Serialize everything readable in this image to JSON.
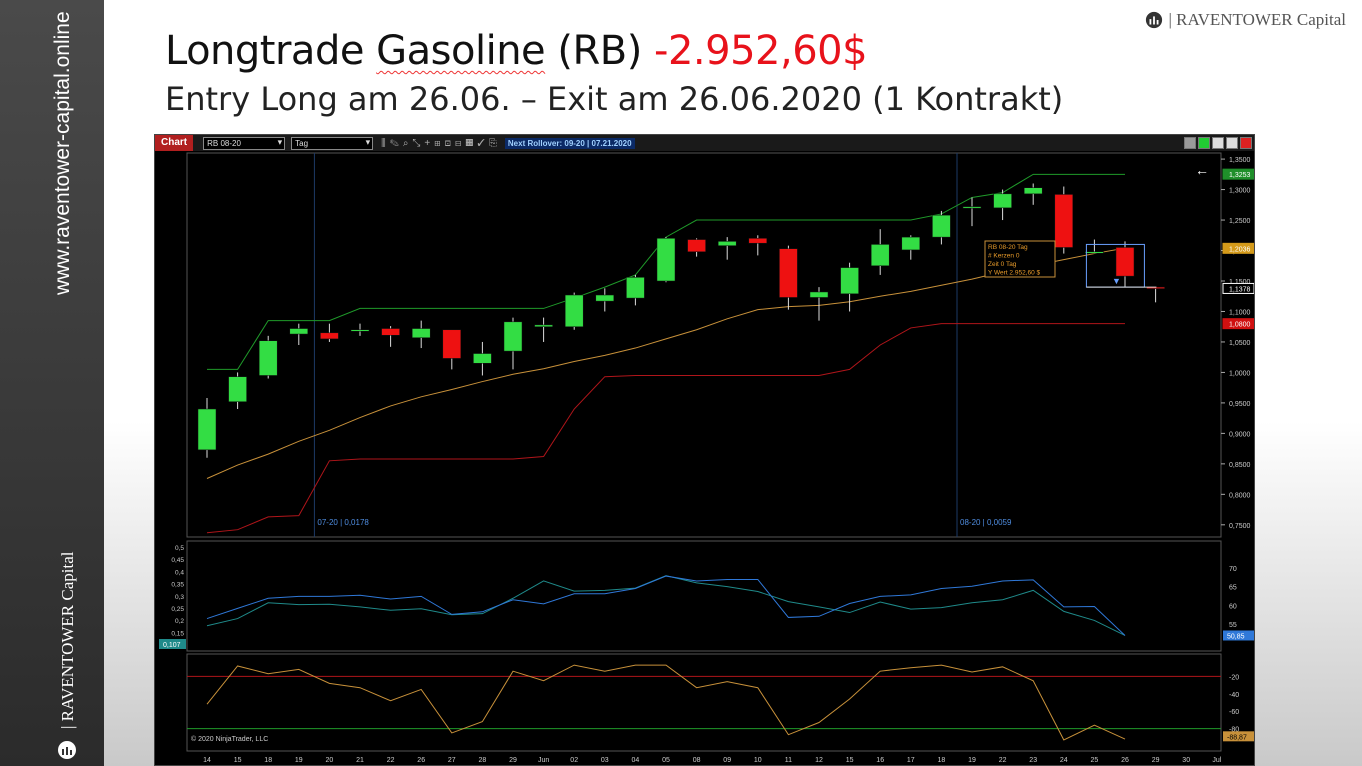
{
  "sidebar": {
    "url": "www.raventower-capital.online",
    "brand": "| RAVENTOWER Capital"
  },
  "header": {
    "brand": "| RAVENTOWER Capital",
    "title_main": "Longtrade ",
    "title_underlined": "Gasoline",
    "title_symbol": " (RB) ",
    "title_pnl": "-2.952,60$",
    "subtitle": "Entry Long am 26.06. – Exit am 26.06.2020 (1 Kontrakt)",
    "pnl_color": "#e8121b"
  },
  "toolbar": {
    "chart_label": "Chart",
    "instrument": "RB 08-20",
    "timeframe": "Tag",
    "rollover": "Next Rollover: 09-20 | 07.21.2020"
  },
  "chart_data": {
    "type": "candlestick",
    "instrument": "RB 08-20",
    "timeframe": "Tag",
    "x_labels": [
      "14",
      "15",
      "18",
      "19",
      "20",
      "21",
      "22",
      "26",
      "27",
      "28",
      "29",
      "Jun",
      "02",
      "03",
      "04",
      "05",
      "08",
      "09",
      "10",
      "11",
      "12",
      "15",
      "16",
      "17",
      "18",
      "19",
      "22",
      "23",
      "24",
      "25",
      "26",
      "29",
      "30",
      "Jul"
    ],
    "candles": [
      {
        "o": 0.873,
        "h": 0.958,
        "l": 0.86,
        "c": 0.94
      },
      {
        "o": 0.952,
        "h": 1.0,
        "l": 0.94,
        "c": 0.993
      },
      {
        "o": 0.995,
        "h": 1.06,
        "l": 0.99,
        "c": 1.052
      },
      {
        "o": 1.063,
        "h": 1.08,
        "l": 1.045,
        "c": 1.072
      },
      {
        "o": 1.065,
        "h": 1.08,
        "l": 1.05,
        "c": 1.055
      },
      {
        "o": 1.069,
        "h": 1.08,
        "l": 1.06,
        "c": 1.07
      },
      {
        "o": 1.072,
        "h": 1.076,
        "l": 1.042,
        "c": 1.061
      },
      {
        "o": 1.057,
        "h": 1.085,
        "l": 1.04,
        "c": 1.072
      },
      {
        "o": 1.07,
        "h": 1.07,
        "l": 1.005,
        "c": 1.023
      },
      {
        "o": 1.015,
        "h": 1.05,
        "l": 0.995,
        "c": 1.031
      },
      {
        "o": 1.035,
        "h": 1.09,
        "l": 1.005,
        "c": 1.083
      },
      {
        "o": 1.075,
        "h": 1.09,
        "l": 1.05,
        "c": 1.078
      },
      {
        "o": 1.075,
        "h": 1.131,
        "l": 1.07,
        "c": 1.127
      },
      {
        "o": 1.117,
        "h": 1.138,
        "l": 1.1,
        "c": 1.127
      },
      {
        "o": 1.122,
        "h": 1.16,
        "l": 1.11,
        "c": 1.156
      },
      {
        "o": 1.15,
        "h": 1.222,
        "l": 1.148,
        "c": 1.22
      },
      {
        "o": 1.218,
        "h": 1.22,
        "l": 1.19,
        "c": 1.198
      },
      {
        "o": 1.208,
        "h": 1.222,
        "l": 1.185,
        "c": 1.215
      },
      {
        "o": 1.22,
        "h": 1.225,
        "l": 1.192,
        "c": 1.212
      },
      {
        "o": 1.203,
        "h": 1.208,
        "l": 1.103,
        "c": 1.123
      },
      {
        "o": 1.123,
        "h": 1.14,
        "l": 1.085,
        "c": 1.132
      },
      {
        "o": 1.129,
        "h": 1.18,
        "l": 1.1,
        "c": 1.172
      },
      {
        "o": 1.175,
        "h": 1.235,
        "l": 1.16,
        "c": 1.21
      },
      {
        "o": 1.201,
        "h": 1.225,
        "l": 1.185,
        "c": 1.222
      },
      {
        "o": 1.222,
        "h": 1.265,
        "l": 1.21,
        "c": 1.258
      },
      {
        "o": 1.27,
        "h": 1.287,
        "l": 1.24,
        "c": 1.272
      },
      {
        "o": 1.27,
        "h": 1.3,
        "l": 1.25,
        "c": 1.293
      },
      {
        "o": 1.293,
        "h": 1.31,
        "l": 1.275,
        "c": 1.303
      },
      {
        "o": 1.292,
        "h": 1.305,
        "l": 1.195,
        "c": 1.205
      },
      {
        "o": 1.198,
        "h": 1.218,
        "l": 1.195,
        "c": 1.198
      },
      {
        "o": 1.205,
        "h": 1.215,
        "l": 1.14,
        "c": 1.158
      },
      {
        "o": 1.14,
        "h": 1.14,
        "l": 1.115,
        "c": 1.138
      }
    ],
    "upper_channel": [
      1.005,
      1.005,
      1.085,
      1.085,
      1.085,
      1.105,
      1.105,
      1.105,
      1.105,
      1.105,
      1.105,
      1.105,
      1.122,
      1.14,
      1.16,
      1.222,
      1.25,
      1.25,
      1.25,
      1.25,
      1.25,
      1.25,
      1.25,
      1.25,
      1.26,
      1.287,
      1.295,
      1.325,
      1.325,
      1.325,
      1.325
    ],
    "lower_channel": [
      0.737,
      0.742,
      0.763,
      0.765,
      0.855,
      0.858,
      0.858,
      0.858,
      0.858,
      0.858,
      0.858,
      0.862,
      0.94,
      0.993,
      0.995,
      0.995,
      0.995,
      0.995,
      0.995,
      0.995,
      0.995,
      1.005,
      1.045,
      1.073,
      1.08,
      1.08,
      1.08,
      1.08,
      1.08,
      1.08,
      1.08
    ],
    "moving_average": [
      0.826,
      0.848,
      0.866,
      0.887,
      0.905,
      0.926,
      0.945,
      0.96,
      0.972,
      0.985,
      0.997,
      1.006,
      1.018,
      1.028,
      1.04,
      1.055,
      1.07,
      1.088,
      1.103,
      1.108,
      1.11,
      1.116,
      1.125,
      1.133,
      1.143,
      1.153,
      1.165,
      1.175,
      1.185,
      1.195,
      1.204
    ],
    "ylim": [
      0.73,
      1.36
    ],
    "y_ticks": [
      "1,3500",
      "1,3000",
      "1,2500",
      "1,2000",
      "1,1500",
      "1,1000",
      "1,0500",
      "1,0000",
      "0,9500",
      "0,9000",
      "0,8500",
      "0,8000",
      "0,7500"
    ],
    "price_markers": [
      {
        "label": "1,3253",
        "value": 1.3253,
        "color": "#1f8f2a"
      },
      {
        "label": "1,2036",
        "value": 1.2036,
        "color": "#d49a1a"
      },
      {
        "label": "1,1378",
        "value": 1.1378,
        "color": "#ffffff"
      },
      {
        "label": "1,0800",
        "value": 1.08,
        "color": "#d01010"
      }
    ],
    "rollover_labels": [
      {
        "text": "07-20 | 0,0178",
        "x_index": 4
      },
      {
        "text": "08-20 | 0,0059",
        "x_index": 25
      }
    ],
    "tooltip": [
      "RB 08-20 Tag",
      "# Kerzen   0",
      "Zeit      0 Tag",
      "Y Wert    2.952,60 $"
    ],
    "indicator1": {
      "left_ticks": [
        "0,5",
        "0,45",
        "0,4",
        "0,35",
        "0,3",
        "0,25",
        "0,2",
        "0,15"
      ],
      "right_ticks": [
        "70",
        "65",
        "60",
        "55"
      ],
      "ylim": [
        50,
        75
      ],
      "series_a": [
        56.5,
        59.2,
        61.9,
        62.4,
        62.4,
        62.7,
        61.7,
        62.4,
        57.6,
        58.3,
        61.5,
        60.4,
        63.1,
        63.1,
        64.5,
        67.8,
        66.5,
        66.9,
        66.9,
        56.8,
        57.1,
        60.5,
        62.4,
        62.8,
        64.5,
        65.1,
        66.5,
        66.8,
        59.6,
        59.7,
        52.0
      ],
      "series_b": [
        54.6,
        56.5,
        60.7,
        60.2,
        60.3,
        59.6,
        58.7,
        59.1,
        57.5,
        57.8,
        61.9,
        66.5,
        63.8,
        64.0,
        64.6,
        67.9,
        66.0,
        65.0,
        63.7,
        61.0,
        59.6,
        58.1,
        60.9,
        59.0,
        59.4,
        60.7,
        61.5,
        64.0,
        58.4,
        56.0,
        52.0
      ],
      "label_left": "0,107",
      "label_right": "50,85"
    },
    "indicator2": {
      "right_ticks": [
        "-20",
        "-40",
        "-60",
        "-80"
      ],
      "ylim": [
        -100,
        0
      ],
      "upper_level": -20,
      "lower_level": -80,
      "values": [
        -52,
        -8,
        -17,
        -12,
        -28,
        -33,
        -48,
        -35,
        -85,
        -72,
        -14,
        -25,
        -7,
        -14,
        -7,
        -7,
        -33,
        -26,
        -33,
        -87,
        -73,
        -46,
        -14,
        -10,
        -7,
        -15,
        -9,
        -25,
        -93,
        -76,
        -92
      ],
      "label_right": "-88,87",
      "copyright": "© 2020 NinjaTrader, LLC"
    }
  }
}
